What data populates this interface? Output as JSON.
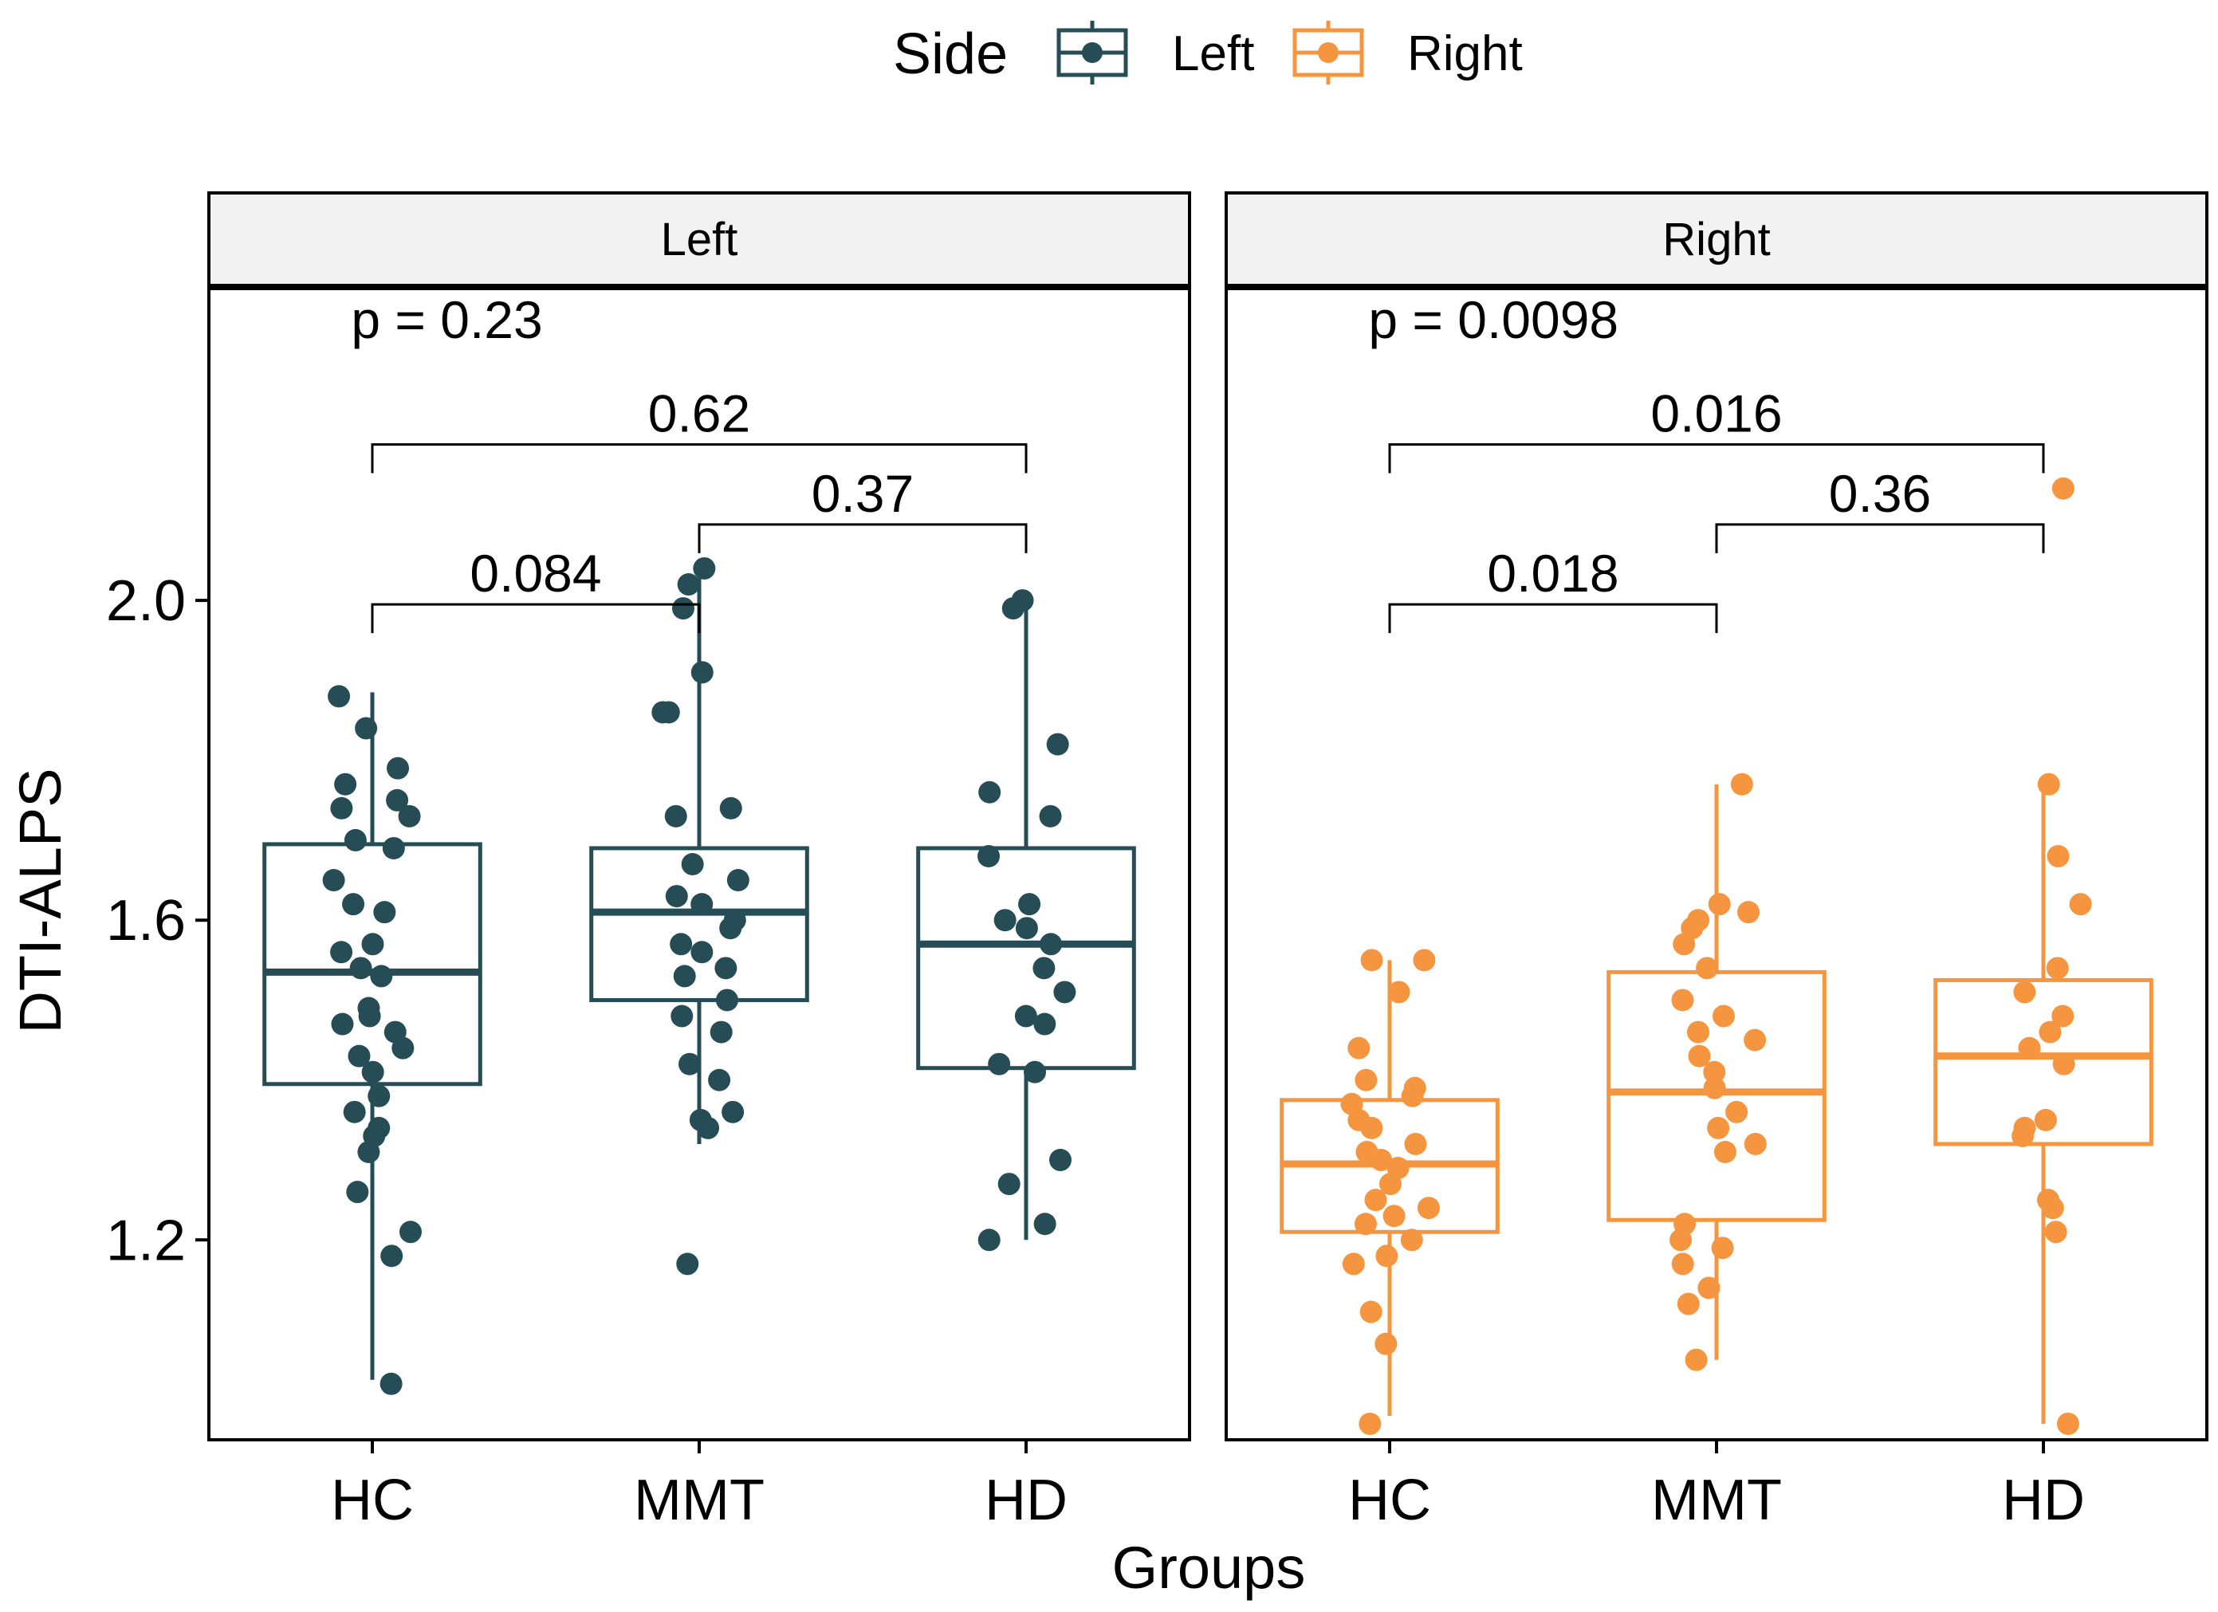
{
  "chart_data": {
    "type": "boxplot",
    "legend": {
      "title": "Side",
      "position": "top",
      "entries": [
        {
          "label": "Left",
          "color": "#264d55"
        },
        {
          "label": "Right",
          "color": "#f5953f"
        }
      ]
    },
    "xlabel": "Groups",
    "ylabel": "DTI-ALPS",
    "ylim": [
      0.95,
      2.39
    ],
    "yticks": [
      1.2,
      1.6,
      2.0
    ],
    "ytick_labels": [
      "1.2",
      "1.6",
      "2.0"
    ],
    "categories": [
      "HC",
      "MMT",
      "HD"
    ],
    "grid": false,
    "panels": [
      {
        "strip": "Left",
        "color": "#264d55",
        "global_p": "p = 0.23",
        "boxes": [
          {
            "q1": 1.395,
            "median": 1.535,
            "q3": 1.695,
            "whisker_low": 1.025,
            "whisker_high": 1.885
          },
          {
            "q1": 1.5,
            "median": 1.61,
            "q3": 1.69,
            "whisker_low": 1.32,
            "whisker_high": 2.04
          },
          {
            "q1": 1.415,
            "median": 1.57,
            "q3": 1.69,
            "whisker_low": 1.2,
            "whisker_high": 2.0
          }
        ],
        "comparisons": [
          {
            "from": "HC",
            "to": "HD",
            "label": "0.62",
            "y": 2.195
          },
          {
            "from": "MMT",
            "to": "HD",
            "label": "0.37",
            "y": 2.095
          },
          {
            "from": "HC",
            "to": "MMT",
            "label": "0.084",
            "y": 1.995
          }
        ],
        "points": [
          [
            1.02,
            1.88,
            1.84,
            1.79,
            1.77,
            1.75,
            1.74,
            1.73,
            1.7,
            1.69,
            1.65,
            1.62,
            1.61,
            1.57,
            1.56,
            1.54,
            1.53,
            1.49,
            1.48,
            1.47,
            1.46,
            1.44,
            1.43,
            1.41,
            1.38,
            1.36,
            1.34,
            1.33,
            1.31,
            1.26,
            1.21,
            1.18
          ],
          [
            2.04,
            2.02,
            1.99,
            1.91,
            1.86,
            1.86,
            1.74,
            1.73,
            1.67,
            1.65,
            1.63,
            1.62,
            1.6,
            1.59,
            1.57,
            1.56,
            1.54,
            1.53,
            1.5,
            1.48,
            1.46,
            1.42,
            1.4,
            1.36,
            1.35,
            1.34,
            1.17
          ],
          [
            2.0,
            1.99,
            1.82,
            1.76,
            1.73,
            1.68,
            1.62,
            1.6,
            1.59,
            1.57,
            1.54,
            1.51,
            1.48,
            1.47,
            1.42,
            1.41,
            1.3,
            1.27,
            1.22,
            1.2
          ]
        ]
      },
      {
        "strip": "Right",
        "color": "#f5953f",
        "global_p": "p = 0.0098",
        "boxes": [
          {
            "q1": 1.21,
            "median": 1.295,
            "q3": 1.375,
            "whisker_low": 0.98,
            "whisker_high": 1.55
          },
          {
            "q1": 1.225,
            "median": 1.385,
            "q3": 1.535,
            "whisker_low": 1.05,
            "whisker_high": 1.77
          },
          {
            "q1": 1.32,
            "median": 1.43,
            "q3": 1.525,
            "whisker_low": 0.97,
            "whisker_high": 1.77
          }
        ],
        "comparisons": [
          {
            "from": "HC",
            "to": "HD",
            "label": "0.016",
            "y": 2.195
          },
          {
            "from": "MMT",
            "to": "HD",
            "label": "0.36",
            "y": 2.095
          },
          {
            "from": "HC",
            "to": "MMT",
            "label": "0.018",
            "y": 1.995
          }
        ],
        "points": [
          [
            1.55,
            1.55,
            1.51,
            1.44,
            1.4,
            1.39,
            1.38,
            1.37,
            1.35,
            1.34,
            1.32,
            1.31,
            1.3,
            1.29,
            1.27,
            1.25,
            1.24,
            1.23,
            1.22,
            1.2,
            1.18,
            1.17,
            1.11,
            1.07,
            0.97
          ],
          [
            1.77,
            1.62,
            1.61,
            1.6,
            1.59,
            1.57,
            1.54,
            1.5,
            1.48,
            1.46,
            1.45,
            1.43,
            1.41,
            1.39,
            1.36,
            1.34,
            1.32,
            1.31,
            1.22,
            1.2,
            1.19,
            1.17,
            1.14,
            1.12,
            1.05
          ],
          [
            2.14,
            1.77,
            1.68,
            1.62,
            1.54,
            1.51,
            1.48,
            1.46,
            1.44,
            1.42,
            1.35,
            1.34,
            1.33,
            1.25,
            1.24,
            1.21,
            0.97
          ]
        ]
      }
    ]
  }
}
